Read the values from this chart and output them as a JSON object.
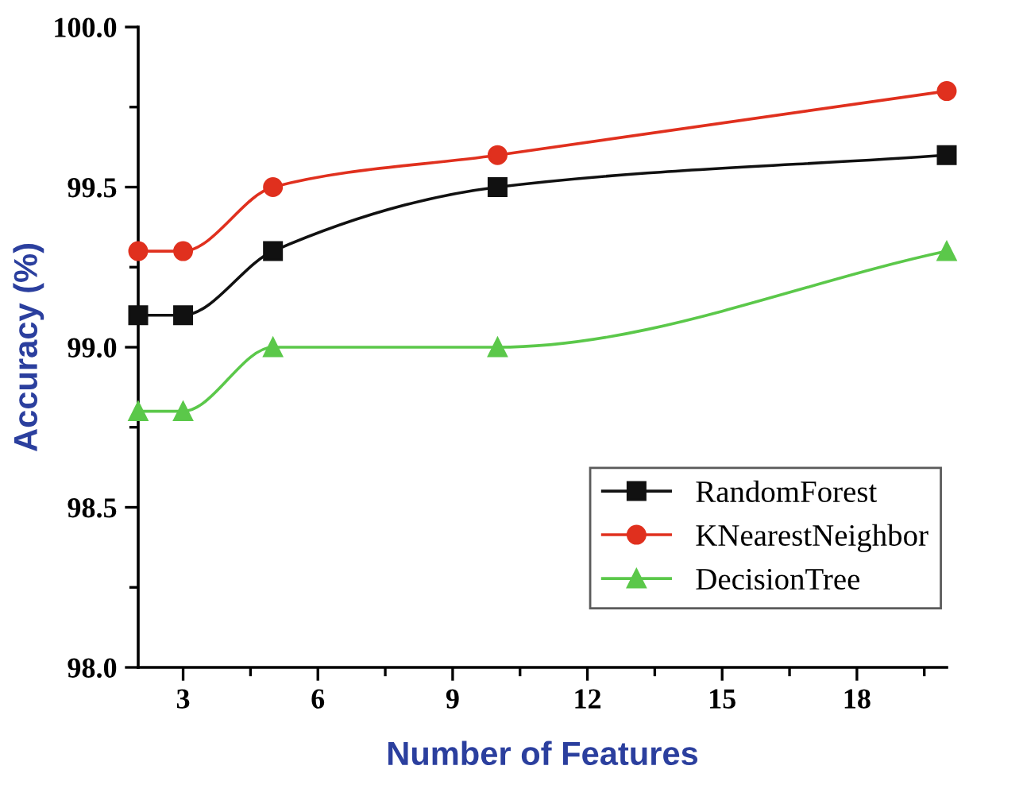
{
  "chart_data": {
    "type": "line",
    "xlabel": "Number of Features",
    "ylabel": "Accuracy (%)",
    "x": [
      2,
      3,
      5,
      10,
      20
    ],
    "series": [
      {
        "name": "RandomForest",
        "color": "#111111",
        "marker": "square",
        "values": [
          99.1,
          99.1,
          99.3,
          99.5,
          99.6
        ]
      },
      {
        "name": "KNearestNeighbor",
        "color": "#e0301e",
        "marker": "circle",
        "values": [
          99.3,
          99.3,
          99.5,
          99.6,
          99.8
        ]
      },
      {
        "name": "DecisionTree",
        "color": "#5bc84a",
        "marker": "triangle",
        "values": [
          98.8,
          98.8,
          99.0,
          99.0,
          99.3
        ]
      }
    ],
    "xlim": [
      2,
      20
    ],
    "xticks": [
      3,
      6,
      9,
      12,
      15,
      18
    ],
    "ylim": [
      98.0,
      100.0
    ],
    "yticks": [
      {
        "value": 98.0,
        "label": "98.0"
      },
      {
        "value": 98.5,
        "label": "98.5"
      },
      {
        "value": 99.0,
        "label": "99.0"
      },
      {
        "value": 99.5,
        "label": "99.5"
      },
      {
        "value": 100.0,
        "label": "100.0"
      }
    ],
    "grid": false,
    "legend": "bottom right",
    "line_style": "solid"
  }
}
